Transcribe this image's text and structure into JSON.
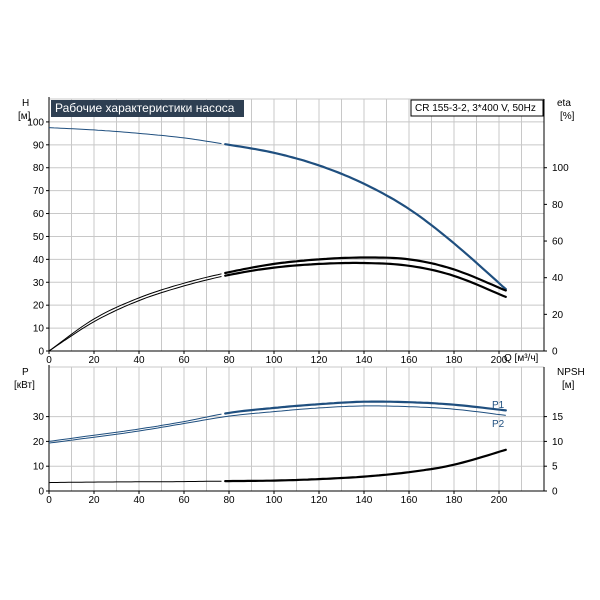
{
  "chart_data": [
    {
      "id": "upper",
      "type": "line",
      "title": "Рабочие характеристики насоса",
      "model_label": "CR 155-3-2, 3*400 V, 50Hz",
      "xlabel": "Q [м³/ч]",
      "xlim": [
        0,
        220
      ],
      "x_ticks": [
        0,
        20,
        40,
        60,
        80,
        100,
        120,
        140,
        160,
        180,
        200
      ],
      "left_axis": {
        "label_top": "H",
        "label_unit": "[м]",
        "ylim": [
          0,
          110
        ],
        "ticks": [
          0,
          10,
          20,
          30,
          40,
          50,
          60,
          70,
          80,
          90,
          100
        ]
      },
      "right_axis": {
        "label_top": "eta",
        "label_unit": "[%]",
        "ylim": [
          0,
          137.5
        ],
        "ticks": [
          0,
          20,
          40,
          60,
          80,
          100
        ]
      },
      "grid": true,
      "series": [
        {
          "axis": "left",
          "color": "#1f4f7f",
          "thick_from": 77,
          "points": [
            [
              0,
              97.5
            ],
            [
              20,
              96.5
            ],
            [
              40,
              95
            ],
            [
              60,
              93
            ],
            [
              80,
              90
            ],
            [
              100,
              86.5
            ],
            [
              120,
              81
            ],
            [
              140,
              73
            ],
            [
              160,
              62
            ],
            [
              180,
              47
            ],
            [
              203,
              27
            ]
          ]
        },
        {
          "axis": "right",
          "color": "#000000",
          "thick_from": 77,
          "points": [
            [
              0,
              0
            ],
            [
              20,
              17.5
            ],
            [
              40,
              29
            ],
            [
              60,
              37
            ],
            [
              80,
              43
            ],
            [
              100,
              47.5
            ],
            [
              120,
              50
            ],
            [
              140,
              51
            ],
            [
              160,
              50
            ],
            [
              180,
              44.5
            ],
            [
              203,
              33
            ]
          ]
        },
        {
          "axis": "right",
          "color": "#000000",
          "thick_from": 77,
          "points": [
            [
              0,
              0
            ],
            [
              20,
              16
            ],
            [
              40,
              27.5
            ],
            [
              60,
              35.5
            ],
            [
              80,
              41.5
            ],
            [
              100,
              45.5
            ],
            [
              120,
              47.5
            ],
            [
              140,
              48
            ],
            [
              160,
              46.5
            ],
            [
              180,
              41
            ],
            [
              203,
              29.5
            ]
          ]
        }
      ]
    },
    {
      "id": "lower",
      "type": "line",
      "xlim": [
        0,
        220
      ],
      "x_ticks": [
        0,
        20,
        40,
        60,
        80,
        100,
        120,
        140,
        160,
        180,
        200
      ],
      "left_axis": {
        "label_top": "P",
        "label_unit": "[кВт]",
        "ylim": [
          0,
          50
        ],
        "ticks": [
          0,
          10,
          20,
          30
        ]
      },
      "right_axis": {
        "label_top": "NPSH",
        "label_unit": "[м]",
        "ylim": [
          0,
          25
        ],
        "ticks": [
          0,
          5,
          10,
          15
        ]
      },
      "grid": true,
      "series": [
        {
          "name": "P1",
          "axis": "left",
          "color": "#1f4f7f",
          "thick_from": 77,
          "points": [
            [
              0,
              20
            ],
            [
              20,
              22.5
            ],
            [
              40,
              25
            ],
            [
              60,
              28
            ],
            [
              80,
              31.5
            ],
            [
              100,
              33.5
            ],
            [
              120,
              35
            ],
            [
              140,
              36
            ],
            [
              160,
              35.8
            ],
            [
              180,
              34.8
            ],
            [
              203,
              32.5
            ]
          ]
        },
        {
          "name": "P2",
          "axis": "left",
          "color": "#1f4f7f",
          "thick_from": 1000,
          "points": [
            [
              0,
              19.3
            ],
            [
              20,
              21.7
            ],
            [
              40,
              24.2
            ],
            [
              60,
              27.2
            ],
            [
              80,
              30.2
            ],
            [
              100,
              32
            ],
            [
              120,
              33.5
            ],
            [
              140,
              34.3
            ],
            [
              160,
              34
            ],
            [
              180,
              33
            ],
            [
              203,
              30.5
            ]
          ]
        },
        {
          "axis": "right",
          "color": "#000000",
          "thick_from": 77,
          "points": [
            [
              0,
              1.7
            ],
            [
              20,
              1.8
            ],
            [
              40,
              1.85
            ],
            [
              60,
              1.9
            ],
            [
              80,
              2.0
            ],
            [
              100,
              2.1
            ],
            [
              120,
              2.4
            ],
            [
              140,
              2.9
            ],
            [
              160,
              3.8
            ],
            [
              180,
              5.3
            ],
            [
              203,
              8.3
            ]
          ]
        }
      ]
    }
  ]
}
